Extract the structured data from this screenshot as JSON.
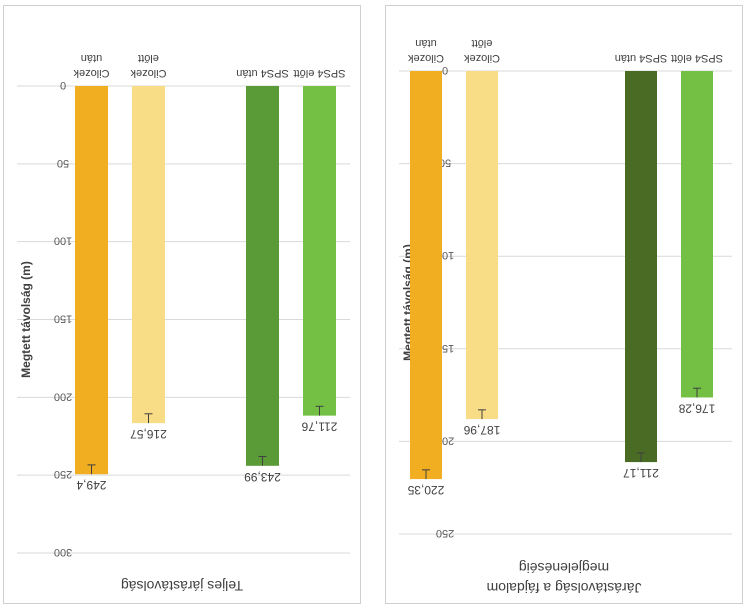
{
  "chart_data": [
    {
      "type": "bar",
      "title": "Teljes járástávolság",
      "ylabel": "Megtett távolság (m)",
      "xlabel": "",
      "ylim": [
        0,
        300
      ],
      "yticks": [
        0,
        50,
        100,
        150,
        200,
        250,
        300
      ],
      "grid": true,
      "categories": [
        [
          "SPS4 előtt"
        ],
        [
          "SPS4 után"
        ],
        [
          "Cilozek",
          "előtt"
        ],
        [
          "Cilozek",
          "után"
        ]
      ],
      "values": [
        211.76,
        243.99,
        216.57,
        249.4
      ],
      "value_labels": [
        "211,76",
        "243,99",
        "216,57",
        "249,4"
      ],
      "error": [
        6,
        6,
        6,
        6
      ],
      "colors": [
        "#74c045",
        "#5a9a37",
        "#f8dc86",
        "#f0ae20"
      ]
    },
    {
      "type": "bar",
      "title": "Járástávolság a fájdalom megjelenéséig",
      "ylabel": "Megtett távolság (m)",
      "xlabel": "",
      "ylim": [
        0,
        250
      ],
      "yticks": [
        0,
        50,
        100,
        150,
        200,
        250
      ],
      "grid": true,
      "categories": [
        [
          "SPS4 előtt"
        ],
        [
          "SPS4 után"
        ],
        [
          "Cilozek",
          "előtt"
        ],
        [
          "Cilozek",
          "után"
        ]
      ],
      "values": [
        176.28,
        211.17,
        187.96,
        220.35
      ],
      "value_labels": [
        "176,28",
        "211,17",
        "187,96",
        "220,35"
      ],
      "error": [
        5,
        5,
        5,
        5
      ],
      "colors": [
        "#74c045",
        "#4a6b23",
        "#f8dc86",
        "#f0ae20"
      ]
    }
  ]
}
